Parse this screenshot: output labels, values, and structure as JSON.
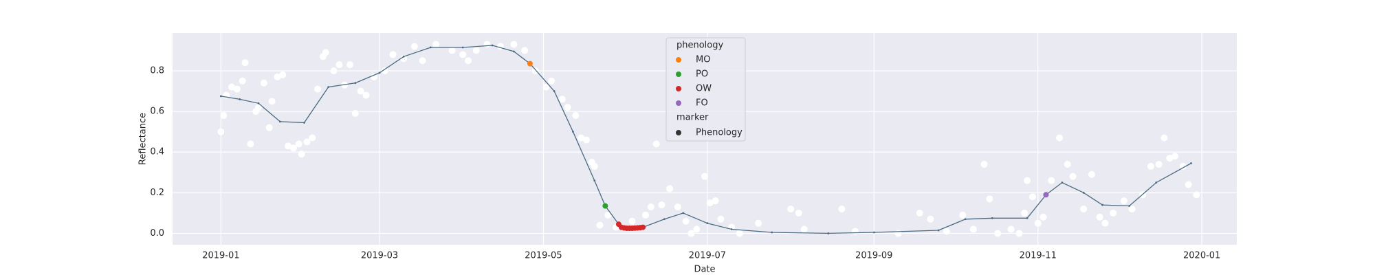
{
  "chart_data": {
    "type": "scatter",
    "xlabel": "Date",
    "ylabel": "Reflectance",
    "xlim": [
      "2018-12-14",
      "2020-01-14"
    ],
    "ylim": [
      -0.056,
      0.986
    ],
    "xticks": [
      "2019-01",
      "2019-03",
      "2019-05",
      "2019-07",
      "2019-09",
      "2019-11",
      "2020-01"
    ],
    "yticks": [
      {
        "value": 0,
        "label": "0.0"
      },
      0.2,
      0.4,
      0.6,
      0.8
    ],
    "grid": true,
    "observations": {
      "color": "#ffffff",
      "x": [
        "2019-01-01",
        "2019-01-02",
        "2019-01-03",
        "2019-01-05",
        "2019-01-07",
        "2019-01-09",
        "2019-01-10",
        "2019-01-12",
        "2019-01-14",
        "2019-01-15",
        "2019-01-17",
        "2019-01-19",
        "2019-01-20",
        "2019-01-22",
        "2019-01-24",
        "2019-01-26",
        "2019-01-28",
        "2019-01-30",
        "2019-01-31",
        "2019-02-02",
        "2019-02-04",
        "2019-02-06",
        "2019-02-08",
        "2019-02-09",
        "2019-02-12",
        "2019-02-14",
        "2019-02-16",
        "2019-02-18",
        "2019-02-20",
        "2019-02-22",
        "2019-02-24",
        "2019-02-27",
        "2019-03-03",
        "2019-03-06",
        "2019-03-10",
        "2019-03-14",
        "2019-03-17",
        "2019-03-22",
        "2019-03-28",
        "2019-04-01",
        "2019-04-03",
        "2019-04-06",
        "2019-04-10",
        "2019-04-15",
        "2019-04-20",
        "2019-04-24",
        "2019-04-28",
        "2019-05-02",
        "2019-05-04",
        "2019-05-08",
        "2019-05-10",
        "2019-05-13",
        "2019-05-15",
        "2019-05-17",
        "2019-05-19",
        "2019-05-20",
        "2019-05-22",
        "2019-05-25",
        "2019-05-28",
        "2019-06-03",
        "2019-06-08",
        "2019-06-10",
        "2019-06-12",
        "2019-06-14",
        "2019-06-17",
        "2019-06-20",
        "2019-06-23",
        "2019-06-25",
        "2019-06-27",
        "2019-06-30",
        "2019-07-02",
        "2019-07-04",
        "2019-07-06",
        "2019-07-10",
        "2019-07-13",
        "2019-07-20",
        "2019-08-01",
        "2019-08-04",
        "2019-08-06",
        "2019-08-20",
        "2019-08-25",
        "2019-09-10",
        "2019-09-18",
        "2019-09-22",
        "2019-09-28",
        "2019-10-04",
        "2019-10-08",
        "2019-10-12",
        "2019-10-14",
        "2019-10-17",
        "2019-10-22",
        "2019-10-25",
        "2019-10-27",
        "2019-10-28",
        "2019-10-30",
        "2019-11-01",
        "2019-11-03",
        "2019-11-06",
        "2019-11-09",
        "2019-11-12",
        "2019-11-14",
        "2019-11-18",
        "2019-11-21",
        "2019-11-24",
        "2019-11-26",
        "2019-11-29",
        "2019-12-03",
        "2019-12-06",
        "2019-12-10",
        "2019-12-13",
        "2019-12-16",
        "2019-12-18",
        "2019-12-20",
        "2019-12-22",
        "2019-12-25",
        "2019-12-27",
        "2019-12-30"
      ],
      "values": [
        0.5,
        0.58,
        0.68,
        0.72,
        0.71,
        0.75,
        0.84,
        0.44,
        0.6,
        0.62,
        0.74,
        0.52,
        0.65,
        0.77,
        0.78,
        0.43,
        0.42,
        0.44,
        0.39,
        0.45,
        0.47,
        0.71,
        0.87,
        0.89,
        0.8,
        0.83,
        0.73,
        0.83,
        0.59,
        0.7,
        0.68,
        0.77,
        0.8,
        0.88,
        0.86,
        0.92,
        0.85,
        0.93,
        0.9,
        0.88,
        0.85,
        0.9,
        0.93,
        0.92,
        0.93,
        0.9,
        0.8,
        0.72,
        0.75,
        0.66,
        0.62,
        0.58,
        0.47,
        0.46,
        0.35,
        0.33,
        0.04,
        0.09,
        0.03,
        0.06,
        0.09,
        0.13,
        0.44,
        0.14,
        0.22,
        0.13,
        0.06,
        0.0,
        0.02,
        0.28,
        0.15,
        0.16,
        0.07,
        0.03,
        0.0,
        0.05,
        0.12,
        0.1,
        0.02,
        0.12,
        0.01,
        0.0,
        0.1,
        0.07,
        0.01,
        0.09,
        0.02,
        0.34,
        0.17,
        0.0,
        0.02,
        0.0,
        0.1,
        0.26,
        0.18,
        0.05,
        0.08,
        0.26,
        0.47,
        0.34,
        0.28,
        0.12,
        0.29,
        0.08,
        0.05,
        0.1,
        0.16,
        0.12,
        0.19,
        0.33,
        0.34,
        0.47,
        0.37,
        0.38,
        0.33,
        0.24,
        0.19
      ]
    },
    "fit": {
      "color": "#4b6a82",
      "x": [
        "2019-01-01",
        "2019-01-08",
        "2019-01-15",
        "2019-01-23",
        "2019-02-01",
        "2019-02-10",
        "2019-02-20",
        "2019-03-01",
        "2019-03-10",
        "2019-03-20",
        "2019-04-01",
        "2019-04-12",
        "2019-04-20",
        "2019-04-26",
        "2019-05-05",
        "2019-05-12",
        "2019-05-20",
        "2019-05-24",
        "2019-05-29",
        "2019-06-01",
        "2019-06-07",
        "2019-06-15",
        "2019-06-22",
        "2019-07-01",
        "2019-07-10",
        "2019-07-25",
        "2019-08-15",
        "2019-09-01",
        "2019-09-25",
        "2019-10-05",
        "2019-10-15",
        "2019-10-28",
        "2019-11-04",
        "2019-11-10",
        "2019-11-18",
        "2019-11-25",
        "2019-12-05",
        "2019-12-15",
        "2019-12-28"
      ],
      "values": [
        0.675,
        0.66,
        0.64,
        0.55,
        0.545,
        0.72,
        0.74,
        0.79,
        0.87,
        0.915,
        0.915,
        0.925,
        0.895,
        0.835,
        0.7,
        0.5,
        0.26,
        0.135,
        0.045,
        0.025,
        0.03,
        0.07,
        0.1,
        0.05,
        0.02,
        0.005,
        0.0,
        0.005,
        0.015,
        0.07,
        0.075,
        0.075,
        0.19,
        0.25,
        0.2,
        0.14,
        0.135,
        0.25,
        0.345
      ]
    },
    "legend": {
      "title": "phenology",
      "marker_title": "marker",
      "marker_label": "Phenology",
      "marker_color": "#333333",
      "position": "upper center"
    },
    "phenology": [
      {
        "name": "MO",
        "color": "#ff7f0e",
        "x": [
          "2019-04-26"
        ],
        "values": [
          0.835
        ]
      },
      {
        "name": "PO",
        "color": "#2ca02c",
        "x": [
          "2019-05-24"
        ],
        "values": [
          0.135
        ]
      },
      {
        "name": "OW",
        "color": "#d62728",
        "x": [
          "2019-05-29",
          "2019-05-30",
          "2019-05-31",
          "2019-06-01",
          "2019-06-02",
          "2019-06-03",
          "2019-06-04",
          "2019-06-05",
          "2019-06-06",
          "2019-06-07"
        ],
        "values": [
          0.045,
          0.03,
          0.027,
          0.025,
          0.025,
          0.025,
          0.026,
          0.027,
          0.028,
          0.03
        ]
      },
      {
        "name": "FO",
        "color": "#9467bd",
        "x": [
          "2019-11-04"
        ],
        "values": [
          0.19
        ]
      }
    ]
  }
}
